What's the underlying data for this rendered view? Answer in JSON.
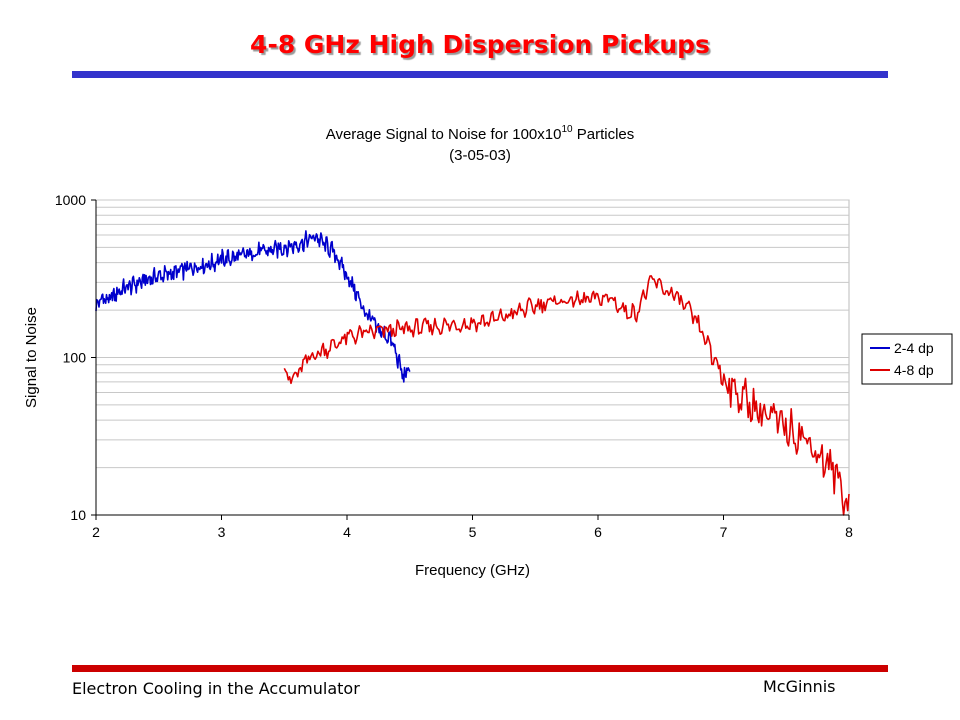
{
  "slide": {
    "title": "4-8 GHz High Dispersion Pickups",
    "footer_left": "Electron Cooling in the Accumulator",
    "footer_right": "McGinnis",
    "colors": {
      "title": "#ff0000",
      "top_rule": "#3333cc",
      "bottom_rule": "#cc0000"
    }
  },
  "chart_data": {
    "type": "line",
    "title_main": "Average Signal to Noise for 100x10",
    "title_sup": "10",
    "title_tail": " Particles",
    "subtitle": "(3-05-03)",
    "xlabel": "Frequency (GHz)",
    "ylabel": "Signal to Noise",
    "xlim": [
      2,
      8
    ],
    "ylim": [
      10,
      1000
    ],
    "y_scale": "log",
    "x_ticks": [
      "2",
      "3",
      "4",
      "5",
      "6",
      "7",
      "8"
    ],
    "y_ticks": [
      "10",
      "100",
      "1000"
    ],
    "grid": "horizontal minor log gridlines",
    "legend_position": "right",
    "series": [
      {
        "name": "2-4 dp",
        "color": "#0000cc",
        "points": [
          [
            2.0,
            210
          ],
          [
            2.05,
            240
          ],
          [
            2.1,
            230
          ],
          [
            2.2,
            270
          ],
          [
            2.3,
            290
          ],
          [
            2.4,
            310
          ],
          [
            2.5,
            330
          ],
          [
            2.6,
            340
          ],
          [
            2.7,
            360
          ],
          [
            2.8,
            380
          ],
          [
            2.9,
            390
          ],
          [
            3.0,
            420
          ],
          [
            3.1,
            430
          ],
          [
            3.2,
            450
          ],
          [
            3.3,
            470
          ],
          [
            3.4,
            480
          ],
          [
            3.5,
            500
          ],
          [
            3.6,
            520
          ],
          [
            3.7,
            560
          ],
          [
            3.75,
            590
          ],
          [
            3.8,
            540
          ],
          [
            3.85,
            500
          ],
          [
            3.9,
            460
          ],
          [
            3.95,
            390
          ],
          [
            4.0,
            330
          ],
          [
            4.05,
            280
          ],
          [
            4.1,
            230
          ],
          [
            4.15,
            190
          ],
          [
            4.2,
            170
          ],
          [
            4.25,
            150
          ],
          [
            4.3,
            140
          ],
          [
            4.35,
            130
          ],
          [
            4.4,
            100
          ],
          [
            4.45,
            75
          ],
          [
            4.5,
            85
          ]
        ]
      },
      {
        "name": "4-8 dp",
        "color": "#dd0000",
        "points": [
          [
            3.5,
            90
          ],
          [
            3.55,
            70
          ],
          [
            3.6,
            78
          ],
          [
            3.7,
            100
          ],
          [
            3.8,
            110
          ],
          [
            3.9,
            120
          ],
          [
            4.0,
            135
          ],
          [
            4.2,
            145
          ],
          [
            4.4,
            150
          ],
          [
            4.6,
            155
          ],
          [
            4.8,
            160
          ],
          [
            5.0,
            165
          ],
          [
            5.2,
            175
          ],
          [
            5.4,
            200
          ],
          [
            5.6,
            225
          ],
          [
            5.8,
            230
          ],
          [
            6.0,
            235
          ],
          [
            6.1,
            240
          ],
          [
            6.2,
            200
          ],
          [
            6.3,
            190
          ],
          [
            6.4,
            280
          ],
          [
            6.45,
            310
          ],
          [
            6.5,
            280
          ],
          [
            6.6,
            250
          ],
          [
            6.7,
            210
          ],
          [
            6.8,
            160
          ],
          [
            6.9,
            110
          ],
          [
            7.0,
            75
          ],
          [
            7.1,
            60
          ],
          [
            7.2,
            52
          ],
          [
            7.3,
            45
          ],
          [
            7.4,
            40
          ],
          [
            7.5,
            36
          ],
          [
            7.6,
            33
          ],
          [
            7.7,
            28
          ],
          [
            7.8,
            22
          ],
          [
            7.9,
            18
          ],
          [
            8.0,
            11
          ]
        ]
      }
    ]
  }
}
